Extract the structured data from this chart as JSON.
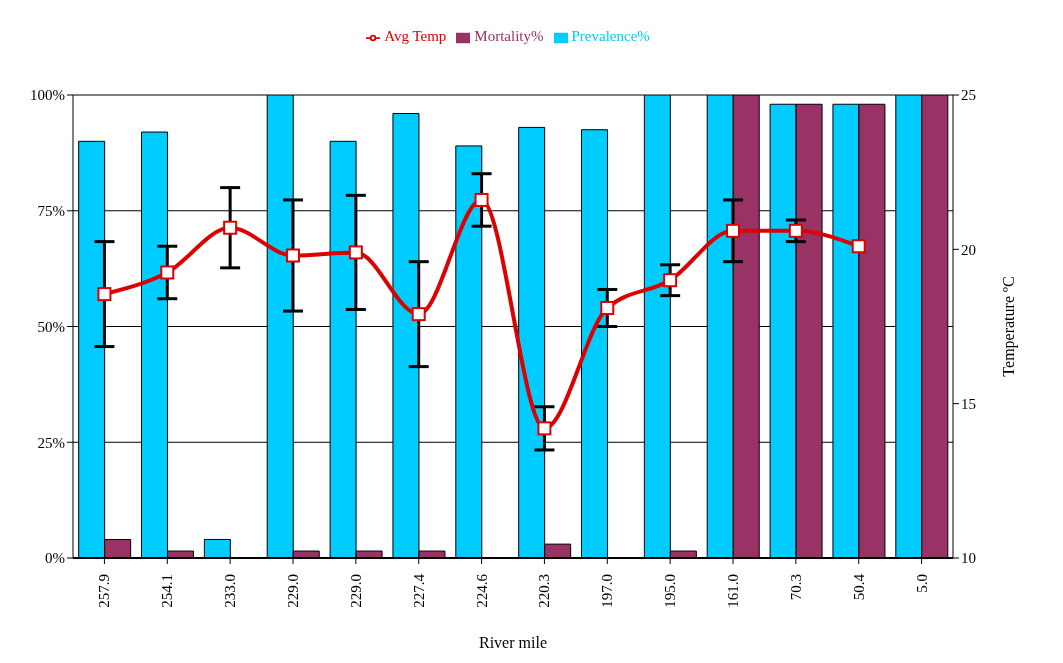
{
  "chart_data": {
    "type": "bar",
    "xlabel": "River mile",
    "y2label": "Temperature ºC",
    "categories": [
      "257.9",
      "254.1",
      "233.0",
      "229.0",
      "229.0",
      "227.4",
      "224.6",
      "220.3",
      "197.0",
      "195.0",
      "161.0",
      "70.3",
      "50.4",
      "5.0"
    ],
    "series": [
      {
        "name": "Prevalence%",
        "color": "#00ccff",
        "values": [
          90,
          92,
          4,
          100,
          90,
          96,
          89,
          93,
          92.5,
          100,
          100,
          98,
          98,
          100
        ]
      },
      {
        "name": "Mortality%",
        "color": "#993366",
        "values": [
          4,
          1.5,
          0,
          1.5,
          1.5,
          1.5,
          0,
          3,
          0,
          1.5,
          100,
          98,
          98,
          100
        ]
      },
      {
        "name": "Avg Temp",
        "type": "line",
        "axis": "y2",
        "color": "#dd0000",
        "marker": "square",
        "values": [
          18.55,
          19.25,
          20.7,
          19.8,
          19.9,
          17.9,
          21.6,
          14.2,
          18.1,
          19.0,
          20.6,
          20.6,
          20.1,
          null
        ],
        "errors": [
          1.7,
          0.85,
          1.3,
          1.8,
          1.85,
          1.7,
          0.85,
          0.7,
          0.6,
          0.5,
          1.0,
          0.35,
          null,
          null
        ]
      }
    ],
    "ylim": [
      0,
      100
    ],
    "yticks": [
      {
        "value": 0,
        "label": "0%"
      },
      {
        "value": 25,
        "label": "25%"
      },
      {
        "value": 50,
        "label": "50%"
      },
      {
        "value": 75,
        "label": "75%"
      },
      {
        "value": 100,
        "label": "100%"
      }
    ],
    "y2lim": [
      10,
      25
    ],
    "y2ticks": [
      10,
      15,
      20,
      25
    ],
    "grid": "y",
    "legend": "top"
  }
}
